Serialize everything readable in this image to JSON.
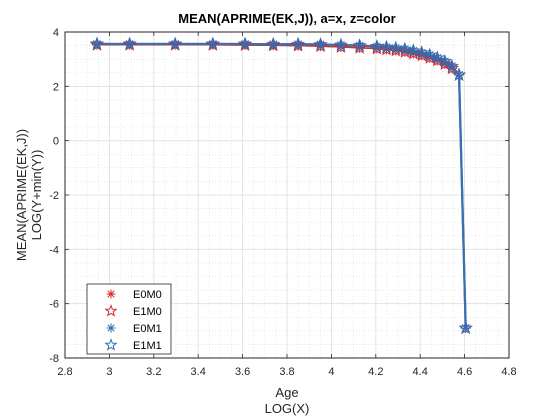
{
  "chart_data": {
    "type": "line",
    "title": "MEAN(APRIME(EK,J)), a=x, z=color",
    "xlabel": [
      "Age",
      "LOG(X)"
    ],
    "ylabel": [
      "MEAN(APRIME(EK,J))",
      "LOG(Y+min(Y))"
    ],
    "xlim": [
      2.8,
      4.8
    ],
    "ylim": [
      -8,
      4
    ],
    "xticks": [
      2.8,
      3,
      3.2,
      3.4,
      3.6,
      3.8,
      4,
      4.2,
      4.4,
      4.6,
      4.8
    ],
    "xtick_labels": [
      "2.8",
      "3",
      "3.2",
      "3.4",
      "3.6",
      "3.8",
      "4",
      "4.2",
      "4.4",
      "4.6",
      "4.8"
    ],
    "yticks": [
      -8,
      -6,
      -4,
      -2,
      0,
      2,
      4
    ],
    "ytick_labels": [
      "-8",
      "-6",
      "-4",
      "-2",
      "0",
      "2",
      "4"
    ],
    "grid": true,
    "minor_grid": true,
    "legend_position": "bottom-left",
    "x": [
      2.944,
      3.091,
      3.296,
      3.466,
      3.611,
      3.738,
      3.85,
      3.951,
      4.043,
      4.127,
      4.205,
      4.248,
      4.29,
      4.331,
      4.369,
      4.407,
      4.443,
      4.477,
      4.511,
      4.543,
      4.575,
      4.605
    ],
    "series": [
      {
        "name": "E0M0",
        "marker": "asterisk",
        "color": "#d62728",
        "line_color": "#c0392b",
        "values": [
          3.53,
          3.53,
          3.53,
          3.53,
          3.52,
          3.51,
          3.5,
          3.48,
          3.45,
          3.42,
          3.39,
          3.36,
          3.32,
          3.27,
          3.21,
          3.14,
          3.05,
          2.95,
          2.82,
          2.66,
          2.42,
          -6.9
        ]
      },
      {
        "name": "E1M0",
        "marker": "pentagram",
        "color": "#d62728",
        "line_color": "#c0392b",
        "values": [
          3.53,
          3.53,
          3.53,
          3.53,
          3.52,
          3.51,
          3.5,
          3.48,
          3.45,
          3.42,
          3.39,
          3.36,
          3.32,
          3.27,
          3.21,
          3.14,
          3.05,
          2.95,
          2.82,
          2.66,
          2.42,
          -6.9
        ]
      },
      {
        "name": "E0M1",
        "marker": "asterisk",
        "color": "#2f6eb5",
        "line_color": "#3a6fb0",
        "values": [
          3.56,
          3.56,
          3.56,
          3.56,
          3.56,
          3.55,
          3.55,
          3.54,
          3.52,
          3.5,
          3.47,
          3.44,
          3.41,
          3.37,
          3.31,
          3.24,
          3.15,
          3.05,
          2.92,
          2.74,
          2.42,
          -6.9
        ]
      },
      {
        "name": "E1M1",
        "marker": "pentagram",
        "color": "#2f6eb5",
        "line_color": "#3a6fb0",
        "values": [
          3.56,
          3.56,
          3.56,
          3.56,
          3.56,
          3.55,
          3.55,
          3.54,
          3.52,
          3.5,
          3.47,
          3.44,
          3.41,
          3.37,
          3.31,
          3.24,
          3.15,
          3.05,
          2.92,
          2.74,
          2.42,
          -6.9
        ]
      }
    ]
  }
}
